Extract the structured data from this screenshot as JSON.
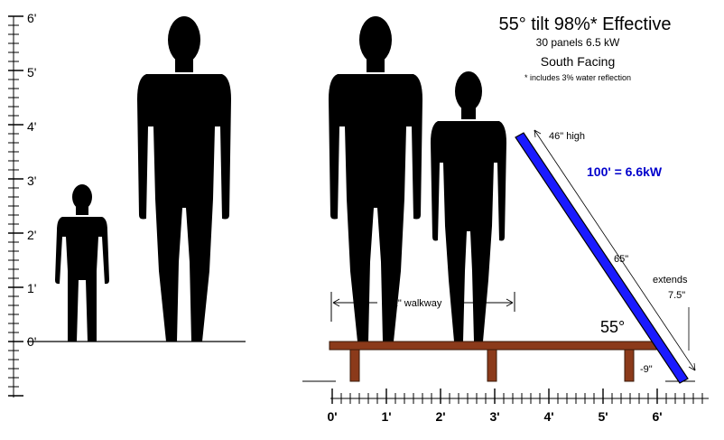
{
  "title": {
    "main": "55° tilt  98%* Effective",
    "line2": "30 panels   6.5 kW",
    "line3": "South Facing",
    "footnote": "* includes 3% water reflection"
  },
  "annotations": {
    "panel_height": "46\" high",
    "power": "100' = 6.6kW",
    "panel_length": "65\"",
    "extends_1": "extends",
    "extends_2": "7.5\"",
    "angle": "55°",
    "below": "-9\"",
    "walkway": "41\" walkway"
  },
  "left_scale": {
    "unit": "ft",
    "ticks": [
      "0'",
      "1'",
      "2'",
      "3'",
      "4'",
      "5'",
      "6'"
    ]
  },
  "bottom_scale": {
    "unit": "ft",
    "ticks": [
      "0'",
      "1'",
      "2'",
      "3'",
      "4'",
      "5'",
      "6'"
    ]
  },
  "figures": {
    "left_child_height_ft": 2.9,
    "left_adult_height_ft": 6.0,
    "right_adult_height_ft": 6.0,
    "right_medium_height_ft": 4.9
  },
  "colors": {
    "panel": "#1a1aff",
    "platform": "#8b3a1a",
    "silhouette": "#000000",
    "power_label": "#0000cc"
  }
}
